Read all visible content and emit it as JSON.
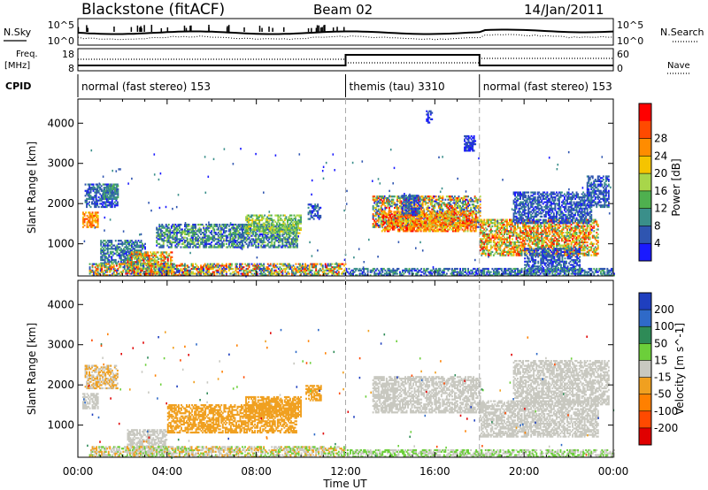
{
  "header": {
    "station": "Blackstone (fitACF)",
    "beam": "Beam 02",
    "date": "14/Jan/2011"
  },
  "left_labels": {
    "nsky": "N.Sky",
    "freq_top": "Freq.",
    "freq_unit": "[MHz]",
    "cpid": "CPID"
  },
  "right_labels": {
    "nsearch": "N.Search",
    "nave": "Nave"
  },
  "ticks": {
    "noise_top": "10^5",
    "noise_bottom": "10^0",
    "freq_top": "18",
    "freq_bottom": "8",
    "nave_top": "60",
    "nave_bottom": "0"
  },
  "cpid_segments": [
    {
      "label": "normal (fast stereo) 153",
      "start": 0,
      "end": 12
    },
    {
      "label": "themis (tau) 3310",
      "start": 12,
      "end": 18
    },
    {
      "label": "normal (fast stereo) 153",
      "start": 18,
      "end": 24
    }
  ],
  "colors": {
    "power": [
      "#1a1aff",
      "#2f55b0",
      "#3a8f8a",
      "#4fb04f",
      "#a8d64a",
      "#f5c400",
      "#ff8c00",
      "#ff4a00",
      "#ff0000"
    ],
    "velocity": [
      "#1f3fbf",
      "#2f6ac8",
      "#2e8b57",
      "#6ccf3a",
      "#c8c8c0",
      "#f0a020",
      "#ff8000",
      "#ff4a00",
      "#e00000"
    ]
  },
  "chart_data": [
    {
      "type": "heatmap",
      "name": "power",
      "ylabel": "Slant Range [km]",
      "yticks": [
        "1000",
        "2000",
        "3000",
        "4000"
      ],
      "ylim": [
        200,
        4600
      ],
      "xlim": [
        0,
        24
      ],
      "colorbar_label": "Power [dB]",
      "colorbar_ticks": [
        "4",
        "8",
        "12",
        "16",
        "20",
        "24",
        "28"
      ],
      "blobs": [
        {
          "t": [
            0.2,
            0.9
          ],
          "r": [
            1400,
            1800
          ],
          "lvl": [
            5,
            7
          ]
        },
        {
          "t": [
            0.3,
            1.8
          ],
          "r": [
            1900,
            2500
          ],
          "lvl": [
            0,
            2
          ]
        },
        {
          "t": [
            1.1,
            1.8
          ],
          "r": [
            2100,
            2500
          ],
          "lvl": [
            1,
            3
          ]
        },
        {
          "t": [
            1.0,
            3.0
          ],
          "r": [
            500,
            1100
          ],
          "lvl": [
            0,
            3
          ]
        },
        {
          "t": [
            2.2,
            4.2
          ],
          "r": [
            250,
            800
          ],
          "lvl": [
            2,
            8
          ]
        },
        {
          "t": [
            3.5,
            9.8
          ],
          "r": [
            900,
            1500
          ],
          "lvl": [
            0,
            4
          ]
        },
        {
          "t": [
            7.5,
            10.0
          ],
          "r": [
            1250,
            1700
          ],
          "lvl": [
            2,
            5
          ]
        },
        {
          "t": [
            10.3,
            10.9
          ],
          "r": [
            1600,
            2000
          ],
          "lvl": [
            0,
            2
          ]
        },
        {
          "t": [
            0.5,
            12.0
          ],
          "r": [
            200,
            500
          ],
          "lvl": [
            0,
            8
          ]
        },
        {
          "t": [
            13.2,
            18.0
          ],
          "r": [
            1400,
            2200
          ],
          "lvl": [
            0,
            8
          ]
        },
        {
          "t": [
            13.6,
            17.8
          ],
          "r": [
            1300,
            1800
          ],
          "lvl": [
            4,
            8
          ]
        },
        {
          "t": [
            14.5,
            15.3
          ],
          "r": [
            1700,
            2200
          ],
          "lvl": [
            0,
            2
          ]
        },
        {
          "t": [
            17.3,
            17.8
          ],
          "r": [
            3300,
            3700
          ],
          "lvl": [
            0,
            1
          ]
        },
        {
          "t": [
            15.6,
            15.9
          ],
          "r": [
            4000,
            4300
          ],
          "lvl": [
            0,
            1
          ]
        },
        {
          "t": [
            18.0,
            23.3
          ],
          "r": [
            700,
            1600
          ],
          "lvl": [
            2,
            8
          ]
        },
        {
          "t": [
            19.5,
            23.0
          ],
          "r": [
            1500,
            2300
          ],
          "lvl": [
            0,
            2
          ]
        },
        {
          "t": [
            22.8,
            23.8
          ],
          "r": [
            1900,
            2700
          ],
          "lvl": [
            0,
            2
          ]
        },
        {
          "t": [
            20.0,
            22.5
          ],
          "r": [
            300,
            900
          ],
          "lvl": [
            0,
            2
          ]
        },
        {
          "t": [
            12.0,
            24.0
          ],
          "r": [
            200,
            380
          ],
          "lvl": [
            0,
            3
          ]
        }
      ]
    },
    {
      "type": "heatmap",
      "name": "velocity",
      "ylabel": "Slant Range [km]",
      "yticks": [
        "1000",
        "2000",
        "3000",
        "4000"
      ],
      "ylim": [
        200,
        4600
      ],
      "xlim": [
        0,
        24
      ],
      "xticks": [
        "00:00",
        "04:00",
        "08:00",
        "12:00",
        "16:00",
        "20:00",
        "00:00"
      ],
      "xlabel": "Time UT",
      "colorbar_label": "Velocity [m s^-1]",
      "colorbar_ticks": [
        "200",
        "100",
        "50",
        "15",
        "-15",
        "-50",
        "-100",
        "-200"
      ],
      "blobs": [
        {
          "t": [
            0.2,
            0.9
          ],
          "r": [
            1400,
            1800
          ],
          "lvl": [
            4,
            4
          ]
        },
        {
          "t": [
            0.3,
            1.8
          ],
          "r": [
            1900,
            2500
          ],
          "lvl": [
            4,
            5
          ]
        },
        {
          "t": [
            2.2,
            4.0
          ],
          "r": [
            300,
            900
          ],
          "lvl": [
            4,
            4
          ]
        },
        {
          "t": [
            4.0,
            9.8
          ],
          "r": [
            800,
            1500
          ],
          "lvl": [
            5,
            5
          ]
        },
        {
          "t": [
            7.5,
            10.0
          ],
          "r": [
            1200,
            1700
          ],
          "lvl": [
            5,
            5
          ]
        },
        {
          "t": [
            10.2,
            10.9
          ],
          "r": [
            1600,
            2000
          ],
          "lvl": [
            5,
            5
          ]
        },
        {
          "t": [
            0.5,
            12.0
          ],
          "r": [
            200,
            450
          ],
          "lvl": [
            3,
            5
          ]
        },
        {
          "t": [
            13.2,
            18.0
          ],
          "r": [
            1300,
            2200
          ],
          "lvl": [
            4,
            4
          ]
        },
        {
          "t": [
            18.0,
            23.3
          ],
          "r": [
            700,
            1600
          ],
          "lvl": [
            4,
            4
          ]
        },
        {
          "t": [
            19.5,
            23.8
          ],
          "r": [
            1500,
            2600
          ],
          "lvl": [
            4,
            4
          ]
        },
        {
          "t": [
            12.0,
            24.0
          ],
          "r": [
            200,
            380
          ],
          "lvl": [
            3,
            4
          ]
        }
      ]
    }
  ]
}
